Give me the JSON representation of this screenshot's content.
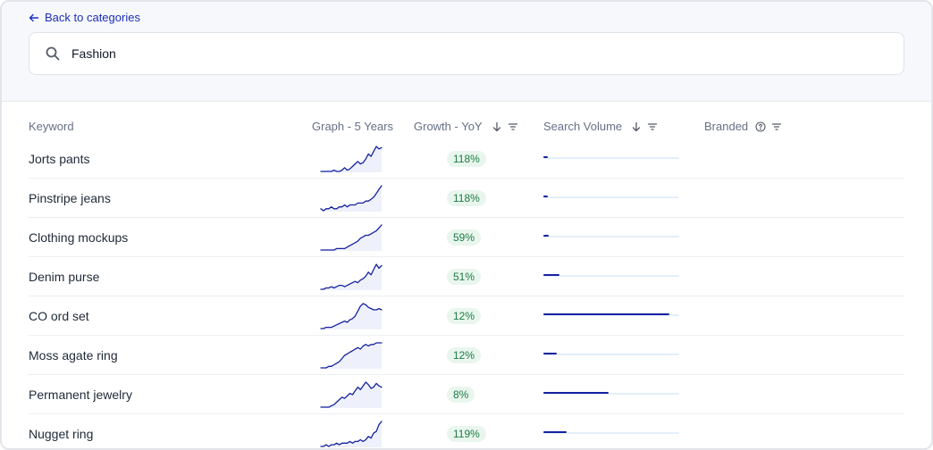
{
  "nav": {
    "back_label": "Back to categories"
  },
  "search": {
    "value": "Fashion",
    "placeholder": ""
  },
  "columns": {
    "keyword": "Keyword",
    "graph": "Graph - 5 Years",
    "growth": "Growth - YoY",
    "volume": "Search Volume",
    "branded": "Branded"
  },
  "colors": {
    "accent": "#1b2fb8",
    "growth_bg": "#e9f6ee",
    "growth_text": "#1d7a43",
    "bar": "#1521a0",
    "bar_track": "#e3effa"
  },
  "rows": [
    {
      "keyword": "Jorts pants",
      "growth": "118%",
      "volume_fraction": 0.03,
      "trend": [
        2,
        2,
        2,
        2,
        2,
        3,
        2,
        2,
        3,
        5,
        3,
        4,
        6,
        8,
        10,
        8,
        9,
        12,
        16,
        14,
        18,
        22,
        20,
        21
      ]
    },
    {
      "keyword": "Pinstripe jeans",
      "growth": "118%",
      "volume_fraction": 0.03,
      "trend": [
        3,
        2,
        3,
        3,
        4,
        3,
        3,
        4,
        4,
        5,
        4,
        5,
        5,
        5,
        6,
        6,
        6,
        7,
        7,
        8,
        9,
        11,
        13,
        15
      ]
    },
    {
      "keyword": "Clothing mockups",
      "growth": "59%",
      "volume_fraction": 0.04,
      "trend": [
        2,
        2,
        2,
        2,
        2,
        2,
        3,
        3,
        3,
        3,
        4,
        5,
        6,
        7,
        8,
        10,
        11,
        12,
        12,
        13,
        14,
        15,
        17,
        19
      ]
    },
    {
      "keyword": "Denim purse",
      "growth": "51%",
      "volume_fraction": 0.12,
      "trend": [
        3,
        3,
        4,
        4,
        5,
        4,
        5,
        6,
        6,
        5,
        6,
        7,
        8,
        9,
        8,
        10,
        11,
        13,
        16,
        14,
        18,
        22,
        19,
        21
      ]
    },
    {
      "keyword": "CO ord set",
      "growth": "12%",
      "volume_fraction": 0.93,
      "trend": [
        2,
        2,
        3,
        3,
        3,
        4,
        5,
        6,
        7,
        8,
        7,
        9,
        10,
        12,
        16,
        20,
        22,
        21,
        19,
        18,
        17,
        17,
        18,
        17
      ]
    },
    {
      "keyword": "Moss agate ring",
      "growth": "12%",
      "volume_fraction": 0.1,
      "trend": [
        2,
        2,
        2,
        3,
        3,
        4,
        5,
        6,
        8,
        10,
        11,
        12,
        13,
        14,
        15,
        14,
        16,
        17,
        16,
        17,
        17,
        18,
        18,
        18
      ]
    },
    {
      "keyword": "Permanent jewelry",
      "growth": "8%",
      "volume_fraction": 0.48,
      "trend": [
        2,
        2,
        2,
        2,
        3,
        4,
        6,
        8,
        10,
        9,
        11,
        13,
        12,
        15,
        18,
        16,
        19,
        22,
        20,
        17,
        18,
        21,
        19,
        18
      ]
    },
    {
      "keyword": "Nugget ring",
      "growth": "119%",
      "volume_fraction": 0.17,
      "trend": [
        2,
        2,
        3,
        2,
        3,
        3,
        4,
        3,
        4,
        4,
        4,
        5,
        4,
        5,
        5,
        6,
        5,
        6,
        8,
        7,
        10,
        11,
        15,
        17
      ]
    }
  ]
}
